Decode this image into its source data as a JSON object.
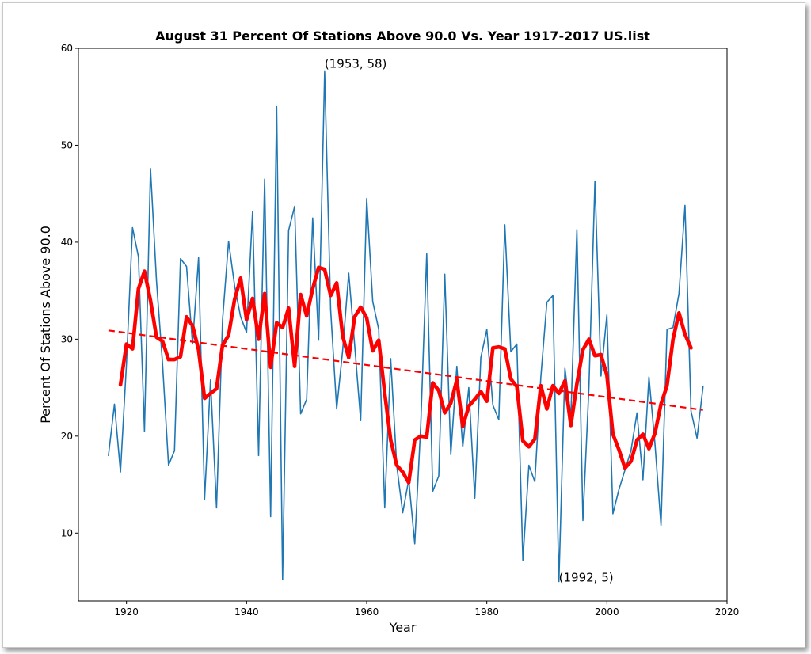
{
  "chart_data": {
    "type": "line",
    "title": "August 31 Percent Of Stations Above 90.0 Vs. Year 1917-2017 US.list",
    "xlabel": "Year",
    "ylabel": "Percent Of Stations Above 90.0",
    "xlim": [
      1912,
      2020
    ],
    "ylim": [
      3,
      60
    ],
    "xticks": [
      1920,
      1940,
      1960,
      1980,
      2000,
      2020
    ],
    "yticks": [
      10,
      20,
      30,
      40,
      50,
      60
    ],
    "grid": false,
    "colors": {
      "raw": "#1f77b4",
      "smooth": "#ff0000",
      "trend": "#ff0000"
    },
    "series": [
      {
        "style": "thin-line",
        "x": [
          1917,
          1918,
          1919,
          1920,
          1921,
          1922,
          1923,
          1924,
          1925,
          1926,
          1927,
          1928,
          1929,
          1930,
          1931,
          1932,
          1933,
          1934,
          1935,
          1936,
          1937,
          1938,
          1939,
          1940,
          1941,
          1942,
          1943,
          1944,
          1945,
          1946,
          1947,
          1948,
          1949,
          1950,
          1951,
          1952,
          1953,
          1954,
          1955,
          1956,
          1957,
          1958,
          1959,
          1960,
          1961,
          1962,
          1963,
          1964,
          1965,
          1966,
          1967,
          1968,
          1969,
          1970,
          1971,
          1972,
          1973,
          1974,
          1975,
          1976,
          1977,
          1978,
          1979,
          1980,
          1981,
          1982,
          1983,
          1984,
          1985,
          1986,
          1987,
          1988,
          1989,
          1990,
          1991,
          1992,
          1993,
          1994,
          1995,
          1996,
          1997,
          1998,
          1999,
          2000,
          2001,
          2002,
          2003,
          2004,
          2005,
          2006,
          2007,
          2008,
          2009,
          2010,
          2011,
          2012,
          2013,
          2014,
          2015,
          2016
        ],
        "values": [
          18.0,
          23.3,
          16.3,
          27.5,
          41.5,
          38.5,
          20.5,
          47.6,
          36.0,
          27.5,
          17.0,
          18.5,
          38.3,
          37.5,
          29.5,
          38.4,
          13.5,
          25.8,
          12.6,
          32.0,
          40.1,
          35.5,
          32.3,
          30.7,
          43.2,
          18.0,
          46.5,
          11.7,
          54.0,
          5.2,
          41.2,
          43.7,
          22.3,
          23.8,
          42.5,
          29.9,
          57.6,
          33.0,
          22.8,
          28.9,
          36.8,
          29.4,
          21.6,
          44.5,
          33.9,
          31.0,
          12.6,
          28.0,
          17.0,
          12.1,
          15.5,
          8.9,
          21.2,
          38.8,
          14.3,
          15.9,
          36.7,
          18.1,
          27.2,
          18.9,
          25.0,
          13.6,
          28.1,
          31.0,
          23.2,
          21.7,
          41.8,
          28.7,
          29.5,
          7.2,
          17.0,
          15.3,
          26.1,
          33.8,
          34.5,
          5.0,
          27.0,
          22.0,
          41.3,
          11.3,
          25.0,
          46.3,
          26.2,
          32.5,
          12.0,
          14.5,
          16.5,
          18.5,
          22.4,
          15.5,
          26.1,
          19.2,
          10.8,
          31.0,
          31.2,
          34.7,
          43.8,
          22.6,
          19.8,
          25.1
        ]
      },
      {
        "style": "thick-smoothed",
        "x": [
          1919,
          1920,
          1921,
          1922,
          1923,
          1924,
          1925,
          1926,
          1927,
          1928,
          1929,
          1930,
          1931,
          1932,
          1933,
          1934,
          1935,
          1936,
          1937,
          1938,
          1939,
          1940,
          1941,
          1942,
          1943,
          1944,
          1945,
          1946,
          1947,
          1948,
          1949,
          1950,
          1951,
          1952,
          1953,
          1954,
          1955,
          1956,
          1957,
          1958,
          1959,
          1960,
          1961,
          1962,
          1963,
          1964,
          1965,
          1966,
          1967,
          1968,
          1969,
          1970,
          1971,
          1972,
          1973,
          1974,
          1975,
          1976,
          1977,
          1978,
          1979,
          1980,
          1981,
          1982,
          1983,
          1984,
          1985,
          1986,
          1987,
          1988,
          1989,
          1990,
          1991,
          1992,
          1993,
          1994,
          1995,
          1996,
          1997,
          1998,
          1999,
          2000,
          2001,
          2002,
          2003,
          2004,
          2005,
          2006,
          2007,
          2008,
          2009,
          2010,
          2011,
          2012,
          2013,
          2014
        ],
        "values": [
          25.3,
          29.5,
          29.0,
          35.2,
          37.0,
          34.0,
          30.2,
          29.8,
          27.9,
          27.9,
          28.2,
          32.3,
          31.4,
          28.9,
          23.9,
          24.4,
          24.9,
          29.4,
          30.4,
          34.1,
          36.3,
          32.0,
          34.2,
          30.0,
          34.7,
          27.1,
          31.7,
          31.2,
          33.2,
          27.2,
          34.6,
          32.4,
          35.2,
          37.4,
          37.2,
          34.5,
          35.8,
          30.3,
          28.1,
          32.3,
          33.3,
          32.2,
          28.8,
          29.9,
          24.4,
          19.6,
          17.0,
          16.3,
          15.2,
          19.6,
          20.0,
          19.9,
          25.5,
          24.7,
          22.4,
          23.4,
          25.8,
          21.0,
          23.1,
          23.8,
          24.6,
          23.6,
          29.1,
          29.2,
          29.0,
          25.9,
          25.1,
          19.5,
          18.9,
          19.7,
          25.2,
          22.8,
          25.2,
          24.4,
          25.7,
          21.1,
          25.4,
          28.9,
          30.0,
          28.3,
          28.4,
          26.3,
          20.2,
          18.6,
          16.7,
          17.4,
          19.6,
          20.2,
          18.7,
          20.3,
          23.3,
          25.2,
          30.0,
          32.7,
          30.5,
          29.1
        ]
      },
      {
        "style": "dashed-trend",
        "x": [
          1917,
          2016
        ],
        "values": [
          30.9,
          22.7
        ]
      }
    ],
    "annotations": [
      {
        "text": "(1953, 58)",
        "x": 1953,
        "y": 58
      },
      {
        "text": "(1992, 5)",
        "x": 1992,
        "y": 5
      }
    ]
  }
}
